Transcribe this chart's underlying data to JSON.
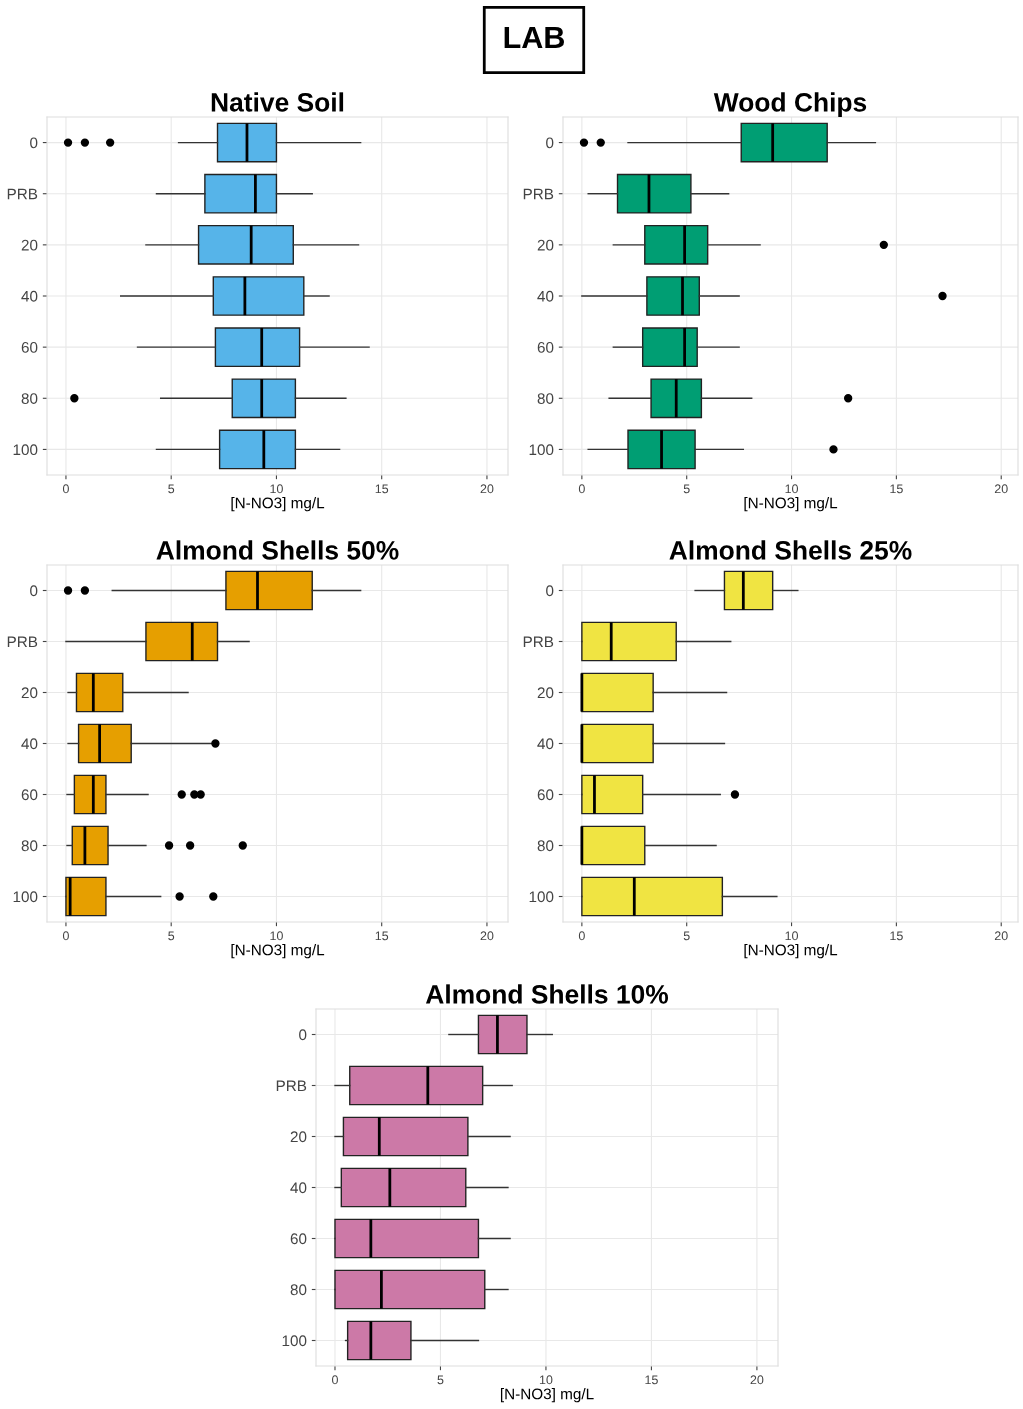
{
  "chart_data": [
    {
      "type": "box",
      "orientation": "horizontal",
      "title": "Native Soil",
      "xlabel": "[N-NO3] mg/L",
      "annotations": [
        "LAB"
      ],
      "color": "#56b4e9",
      "grid": true,
      "xlim": [
        -0.9,
        21
      ],
      "xticks": [
        0,
        5,
        10,
        15,
        20
      ],
      "categories": [
        "0",
        "PRB",
        "20",
        "40",
        "60",
        "80",
        "100"
      ],
      "boxes": [
        {
          "low": 5.35,
          "q1": 7.2,
          "median": 8.6,
          "q3": 10.0,
          "high": 14.0,
          "outliers": [
            0.1,
            0.9,
            2.1
          ]
        },
        {
          "low": 4.3,
          "q1": 6.6,
          "median": 9.0,
          "q3": 10.0,
          "high": 11.7
        },
        {
          "low": 3.8,
          "q1": 6.3,
          "median": 8.8,
          "q3": 10.8,
          "high": 13.9
        },
        {
          "low": 2.6,
          "q1": 7.0,
          "median": 8.5,
          "q3": 11.3,
          "high": 12.5
        },
        {
          "low": 3.4,
          "q1": 7.1,
          "median": 9.3,
          "q3": 11.1,
          "high": 14.4
        },
        {
          "low": 4.5,
          "q1": 7.9,
          "median": 9.3,
          "q3": 10.9,
          "high": 13.3,
          "outliers": [
            0.4
          ]
        },
        {
          "low": 4.3,
          "q1": 7.3,
          "median": 9.4,
          "q3": 10.9,
          "high": 13.0
        }
      ]
    },
    {
      "type": "box",
      "orientation": "horizontal",
      "title": "Wood Chips",
      "xlabel": "[N-NO3] mg/L",
      "color": "#009e73",
      "grid": true,
      "xlim": [
        -0.9,
        20.8
      ],
      "xticks": [
        0,
        5,
        10,
        15,
        20
      ],
      "categories": [
        "0",
        "PRB",
        "20",
        "40",
        "60",
        "80",
        "100"
      ],
      "boxes": [
        {
          "low": 2.2,
          "q1": 7.6,
          "median": 9.1,
          "q3": 11.7,
          "high": 14.0,
          "outliers": [
            0.1,
            0.9
          ]
        },
        {
          "low": 0.3,
          "q1": 1.7,
          "median": 3.2,
          "q3": 5.2,
          "high": 7.0
        },
        {
          "low": 1.5,
          "q1": 3.0,
          "median": 4.9,
          "q3": 6.0,
          "high": 8.5,
          "outliers": [
            14.4
          ]
        },
        {
          "low": 0.0,
          "q1": 3.1,
          "median": 4.8,
          "q3": 5.6,
          "high": 7.5,
          "outliers": [
            17.2
          ]
        },
        {
          "low": 1.5,
          "q1": 2.9,
          "median": 4.9,
          "q3": 5.5,
          "high": 7.5
        },
        {
          "low": 1.3,
          "q1": 3.3,
          "median": 4.5,
          "q3": 5.7,
          "high": 8.1,
          "outliers": [
            12.7
          ]
        },
        {
          "low": 0.3,
          "q1": 2.2,
          "median": 3.8,
          "q3": 5.4,
          "high": 7.7,
          "outliers": [
            12.0
          ]
        }
      ]
    },
    {
      "type": "box",
      "orientation": "horizontal",
      "title": "Almond Shells 50%",
      "xlabel": "[N-NO3] mg/L",
      "color": "#e69f00",
      "grid": true,
      "xlim": [
        -0.9,
        21
      ],
      "xticks": [
        0,
        5,
        10,
        15,
        20
      ],
      "categories": [
        "0",
        "PRB",
        "20",
        "40",
        "60",
        "80",
        "100"
      ],
      "boxes": [
        {
          "low": 2.2,
          "q1": 7.6,
          "median": 9.1,
          "q3": 11.7,
          "high": 14.0,
          "outliers": [
            0.1,
            0.9
          ]
        },
        {
          "low": 0.0,
          "q1": 3.8,
          "median": 6.0,
          "q3": 7.2,
          "high": 8.7
        },
        {
          "low": 0.1,
          "q1": 0.5,
          "median": 1.3,
          "q3": 2.7,
          "high": 5.8
        },
        {
          "low": 0.1,
          "q1": 0.6,
          "median": 1.6,
          "q3": 3.1,
          "high": 7.0,
          "outliers": [
            7.1
          ]
        },
        {
          "low": 0.05,
          "q1": 0.4,
          "median": 1.3,
          "q3": 1.9,
          "high": 3.9,
          "outliers": [
            5.5,
            6.1,
            6.4
          ]
        },
        {
          "low": 0.05,
          "q1": 0.3,
          "median": 0.9,
          "q3": 2.0,
          "high": 3.8,
          "outliers": [
            4.9,
            5.9,
            8.4
          ]
        },
        {
          "low": 0.0,
          "q1": 0.0,
          "median": 0.2,
          "q3": 1.9,
          "high": 4.5,
          "outliers": [
            5.4,
            7.0
          ]
        }
      ]
    },
    {
      "type": "box",
      "orientation": "horizontal",
      "title": "Almond Shells 25%",
      "xlabel": "[N-NO3] mg/L",
      "color": "#f0e442",
      "grid": true,
      "xlim": [
        -0.9,
        20.8
      ],
      "xticks": [
        0,
        5,
        10,
        15,
        20
      ],
      "categories": [
        "0",
        "PRB",
        "20",
        "40",
        "60",
        "80",
        "100"
      ],
      "boxes": [
        {
          "low": 5.4,
          "q1": 6.8,
          "median": 7.7,
          "q3": 9.1,
          "high": 10.3
        },
        {
          "low": 0.0,
          "q1": 0.0,
          "median": 1.4,
          "q3": 4.5,
          "high": 7.1
        },
        {
          "low": 0.0,
          "q1": 0.0,
          "median": 0.0,
          "q3": 3.4,
          "high": 6.9
        },
        {
          "low": 0.0,
          "q1": 0.0,
          "median": 0.0,
          "q3": 3.4,
          "high": 6.8
        },
        {
          "low": 0.0,
          "q1": 0.0,
          "median": 0.6,
          "q3": 2.9,
          "high": 6.6,
          "outliers": [
            7.3
          ]
        },
        {
          "low": 0.0,
          "q1": 0.0,
          "median": 0.0,
          "q3": 3.0,
          "high": 6.4
        },
        {
          "low": 0.0,
          "q1": 0.0,
          "median": 2.5,
          "q3": 6.7,
          "high": 9.3
        }
      ]
    },
    {
      "type": "box",
      "orientation": "horizontal",
      "title": "Almond Shells 10%",
      "xlabel": "[N-NO3] mg/L",
      "color": "#cc79a7",
      "grid": true,
      "xlim": [
        -0.9,
        21
      ],
      "xticks": [
        0,
        5,
        10,
        15,
        20
      ],
      "categories": [
        "0",
        "PRB",
        "20",
        "40",
        "60",
        "80",
        "100"
      ],
      "boxes": [
        {
          "low": 5.4,
          "q1": 6.8,
          "median": 7.7,
          "q3": 9.1,
          "high": 10.3
        },
        {
          "low": 0.0,
          "q1": 0.7,
          "median": 4.4,
          "q3": 7.0,
          "high": 8.4
        },
        {
          "low": 0.0,
          "q1": 0.4,
          "median": 2.1,
          "q3": 6.3,
          "high": 8.3
        },
        {
          "low": 0.0,
          "q1": 0.3,
          "median": 2.6,
          "q3": 6.2,
          "high": 8.2
        },
        {
          "low": 0.0,
          "q1": 0.0,
          "median": 1.7,
          "q3": 6.8,
          "high": 8.3
        },
        {
          "low": 0.0,
          "q1": 0.0,
          "median": 2.2,
          "q3": 7.1,
          "high": 8.2
        },
        {
          "low": 0.5,
          "q1": 0.6,
          "median": 1.7,
          "q3": 3.6,
          "high": 6.8
        }
      ]
    }
  ]
}
